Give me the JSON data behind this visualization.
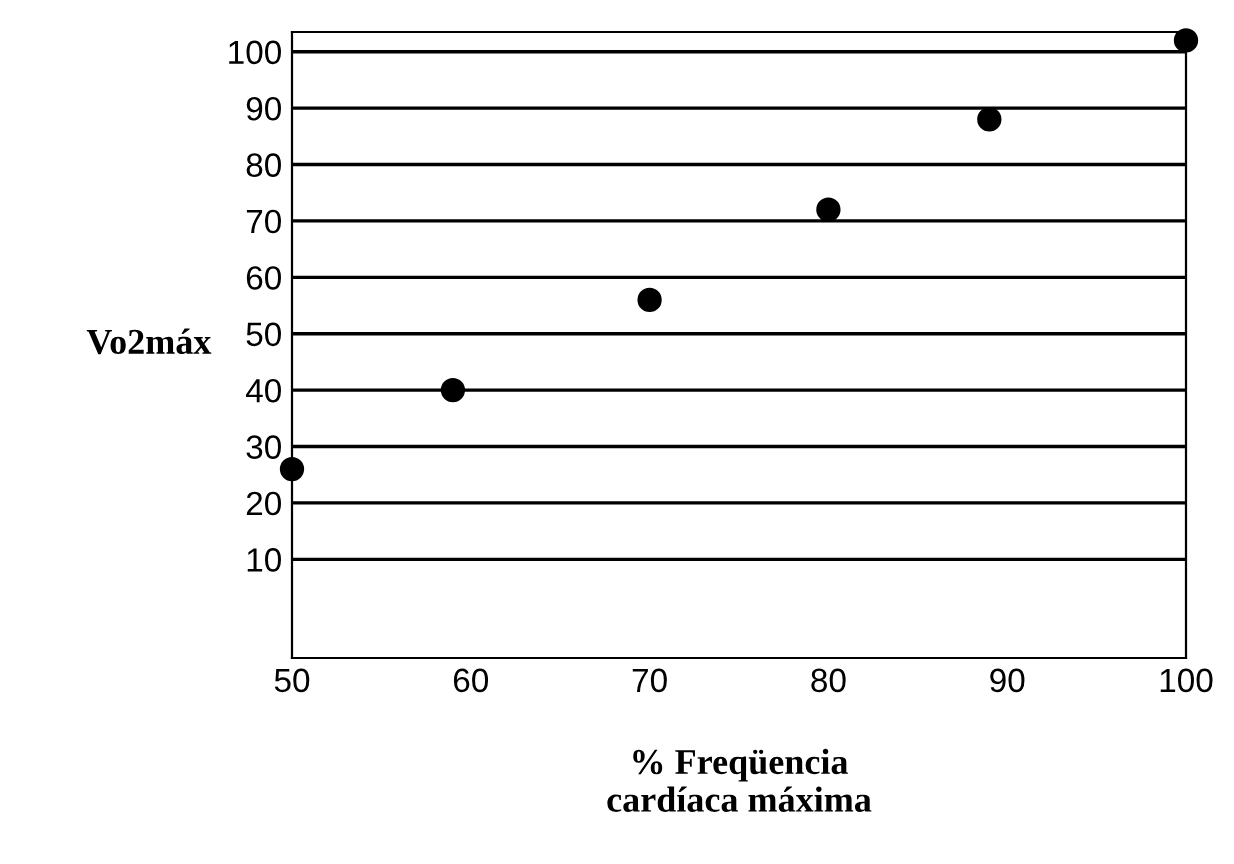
{
  "chart_data": {
    "type": "scatter",
    "xlabel": "% Freqüencia\ncardíaca máxima",
    "ylabel": "Vo2máx",
    "x": [
      50,
      59,
      70,
      80,
      89,
      100
    ],
    "series": [
      {
        "color": "#000000",
        "values": [
          26,
          40,
          56,
          72,
          88,
          102
        ]
      }
    ],
    "xlim": [
      50,
      100
    ],
    "xticks": [
      50,
      60,
      70,
      80,
      90,
      100
    ],
    "ylim": [
      -7.5,
      103.5
    ],
    "yticks": [
      10,
      20,
      30,
      40,
      50,
      60,
      70,
      80,
      90,
      100
    ],
    "grid": "y",
    "marker": "circle"
  }
}
